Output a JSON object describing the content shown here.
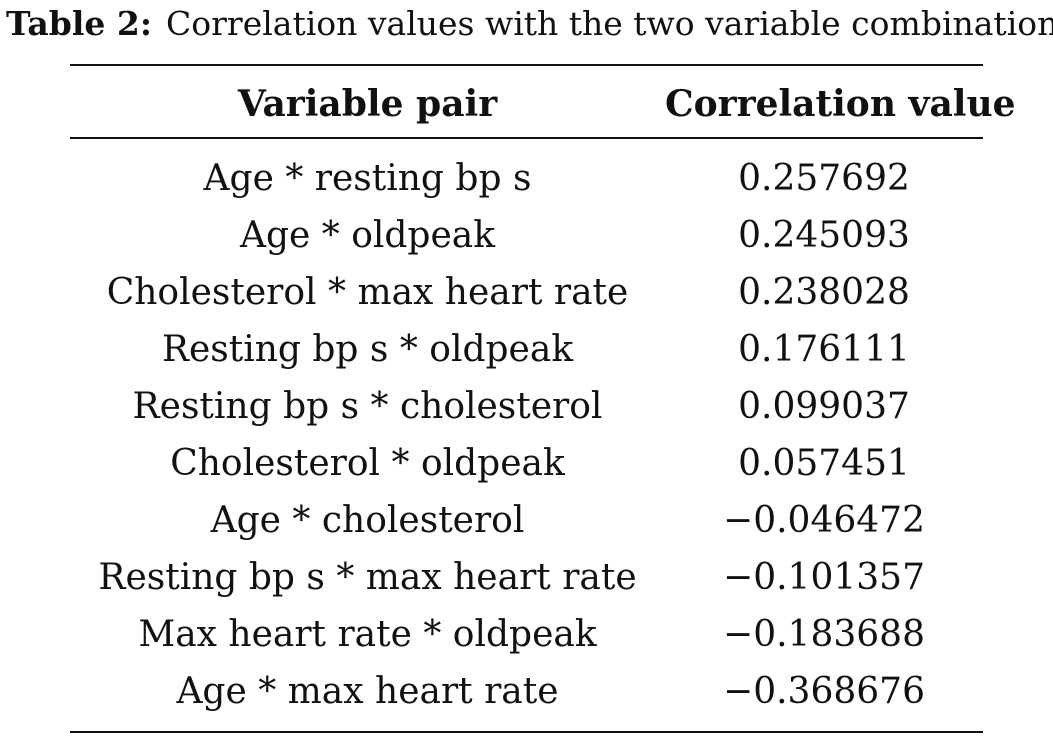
{
  "caption": {
    "label": "Table 2:",
    "text": "Correlation values with the two variable combinations"
  },
  "table": {
    "headers": {
      "pair": "Variable pair",
      "value": "Correlation value"
    },
    "rows": [
      {
        "pair": "Age * resting bp s",
        "value": "0.257692"
      },
      {
        "pair": "Age * oldpeak",
        "value": "0.245093"
      },
      {
        "pair": "Cholesterol * max heart rate",
        "value": "0.238028"
      },
      {
        "pair": "Resting bp s * oldpeak",
        "value": "0.176111"
      },
      {
        "pair": "Resting bp s * cholesterol",
        "value": "0.099037"
      },
      {
        "pair": "Cholesterol * oldpeak",
        "value": "0.057451"
      },
      {
        "pair": "Age * cholesterol",
        "value": "−0.046472"
      },
      {
        "pair": "Resting bp s * max heart rate",
        "value": "−0.101357"
      },
      {
        "pair": "Max heart rate * oldpeak",
        "value": "−0.183688"
      },
      {
        "pair": "Age * max heart rate",
        "value": "−0.368676"
      }
    ]
  }
}
